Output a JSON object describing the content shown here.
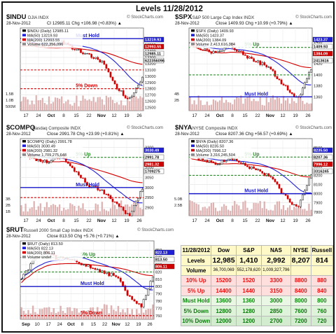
{
  "title": "Levels 11/28/2012",
  "watermark": "© StockCharts.com",
  "colors": {
    "up": "#111111",
    "down": "#d10000",
    "ma50": "#1f1fd6",
    "ma200": "#d10000",
    "volume": "#d9a5a5",
    "green_line": "#2a8c2a",
    "blue_line": "#1515c8",
    "red_line": "#d30000"
  },
  "panels": [
    {
      "id": "indu",
      "symbol": "$INDU",
      "name": "DJIA INDX",
      "date": "28-Nov-2012",
      "stats": "Cl 12985.11  Chg +106.98 (+0.83%) ▲",
      "legend": [
        {
          "text": "$INDU (Daily) 12985.11",
          "color": "#111111"
        },
        {
          "text": "MA(50) 13219.93",
          "color": "#1f1fd6"
        },
        {
          "text": "MA(200) 12993.55",
          "color": "#d10000"
        },
        {
          "text": "Volume 622,356,096",
          "color": "#888888"
        }
      ],
      "y_ticks": [
        "13600",
        "13500",
        "13400",
        "13300",
        "13200",
        "13100",
        "13000",
        "12900",
        "12800",
        "12700",
        "12600",
        "12500"
      ],
      "y_range": [
        12450,
        13680
      ],
      "vol_ticks": [
        "1.5B",
        "1.0B",
        "500M"
      ],
      "price_labels": [
        {
          "text": "13219.93",
          "bg": "#1f1fd6"
        },
        {
          "text": "12993.55",
          "bg": "#d10000"
        },
        {
          "text": "12985.11",
          "bg": "#ffffff"
        },
        {
          "text": "622356096",
          "bg": "#ffffff"
        }
      ],
      "x_labels": [
        "17",
        "24",
        "Oct",
        "8",
        "15",
        "22",
        "Nov",
        "12",
        "19",
        "26"
      ],
      "levels": [
        {
          "label": "Must Hold",
          "value": 13600,
          "color": "#1515c8",
          "style": "solid"
        },
        {
          "label": "",
          "value": 13100,
          "color": "#d30000",
          "style": "dashed"
        },
        {
          "label": "5% Down",
          "value": 12800,
          "color": "#d30000",
          "style": "dashed"
        }
      ]
    },
    {
      "id": "spx",
      "symbol": "$SPX",
      "name": "S&P 500 Large Cap Index INDX",
      "date": "28-Nov-2012",
      "stats": "Close 1409.93  Chg +10.99 (+0.79%) ▲",
      "legend": [
        {
          "text": "$SPX (Daily) 1409.93",
          "color": "#111111"
        },
        {
          "text": "MA(50) 1423.37",
          "color": "#1f1fd6"
        },
        {
          "text": "MA(200) 1384.09",
          "color": "#d10000"
        },
        {
          "text": "Volume 2,413,616,384",
          "color": "#888888"
        }
      ],
      "y_ticks": [
        "1460",
        "1440",
        "1420",
        "1400",
        "1380",
        "1360"
      ],
      "y_range": [
        1335,
        1475
      ],
      "vol_ticks": [
        "4B",
        "2B"
      ],
      "price_labels": [
        {
          "text": "1423.37",
          "bg": "#1f1fd6"
        },
        {
          "text": "1409.93",
          "bg": "#ffffff"
        },
        {
          "text": "1384.09",
          "bg": "#d10000"
        },
        {
          "text": "2413616",
          "bg": "#ffffff"
        }
      ],
      "x_labels": [
        "17",
        "24",
        "Oct",
        "8",
        "15",
        "22",
        "Nov",
        "12",
        "19",
        "26"
      ],
      "levels": [
        {
          "label": "5% Up",
          "value": 1450,
          "color": "#2a8c2a",
          "style": "dashed"
        },
        {
          "label": "",
          "value": 1400,
          "color": "#2a8c2a",
          "style": "dashed"
        },
        {
          "label": "Must Hold",
          "value": 1360,
          "color": "#1515c8",
          "style": "solid"
        }
      ]
    },
    {
      "id": "compq",
      "symbol": "$COMPQ",
      "name": "Nasdaq Composite INDX",
      "date": "28-Nov-2012",
      "stats": "Close 2991.78  Chg +23.99 (+0.81%) ▲",
      "legend": [
        {
          "text": "$COMPQ (Daily) 2991.78",
          "color": "#111111"
        },
        {
          "text": "MA(50) 3030.49",
          "color": "#1f1fd6"
        },
        {
          "text": "MA(200) 2981.32",
          "color": "#d10000"
        },
        {
          "text": "Volume 1,709,275,648",
          "color": "#888888"
        }
      ],
      "y_ticks": [
        "3200",
        "3150",
        "3100",
        "3050",
        "3000",
        "2950",
        "2900"
      ],
      "y_range": [
        2860,
        3215
      ],
      "vol_ticks": [
        "3B",
        "2B",
        "1B"
      ],
      "price_labels": [
        {
          "text": "3030.49",
          "bg": "#1f1fd6"
        },
        {
          "text": "2991.78",
          "bg": "#ffffff"
        },
        {
          "text": "2981.32",
          "bg": "#d10000"
        },
        {
          "text": "1709275",
          "bg": "#ffffff"
        }
      ],
      "x_labels": [
        "17",
        "24",
        "Oct",
        "8",
        "15",
        "22",
        "Nov",
        "12",
        "19",
        "26"
      ],
      "levels": [
        {
          "label": "5% Up",
          "value": 3150,
          "color": "#2a8c2a",
          "style": "dashed"
        },
        {
          "label": "Must Hold",
          "value": 3000,
          "color": "#1515c8",
          "style": "solid"
        },
        {
          "label": "",
          "value": 2950,
          "color": "#d30000",
          "style": "dashed"
        },
        {
          "label": "5% Down",
          "value": 2850,
          "color": "#d30000",
          "style": "dashed"
        }
      ]
    },
    {
      "id": "nya",
      "symbol": "$NYA",
      "name": "NYSE Composite INDX",
      "date": "28-Nov-2012",
      "stats": "Close 8207.36  Chg +56.57 (+0.69%) ▲",
      "legend": [
        {
          "text": "$NYA (Daily) 8207.36",
          "color": "#111111"
        },
        {
          "text": "MA(50) 8235.50",
          "color": "#1f1fd6"
        },
        {
          "text": "MA(200) 7996.12",
          "color": "#d10000"
        },
        {
          "text": "Volume 3,316,245,504",
          "color": "#888888"
        }
      ],
      "y_ticks": [
        "8500",
        "8400",
        "8300",
        "8200",
        "8100",
        "8000",
        "7900",
        "7800"
      ],
      "y_range": [
        7760,
        8540
      ],
      "vol_ticks": [
        "5.0B",
        "2.5B"
      ],
      "price_labels": [
        {
          "text": "8235.50",
          "bg": "#1f1fd6"
        },
        {
          "text": "8207.36",
          "bg": "#ffffff"
        },
        {
          "text": "7996.12",
          "bg": "#d10000"
        },
        {
          "text": "3316245",
          "bg": "#ffffff"
        }
      ],
      "x_labels": [
        "17",
        "24",
        "Oct",
        "8",
        "15",
        "22",
        "Nov",
        "12",
        "19",
        "26"
      ],
      "levels": [
        {
          "label": "5% Up",
          "value": 8400,
          "color": "#2a8c2a",
          "style": "dashed"
        },
        {
          "label": "",
          "value": 8200,
          "color": "#2a8c2a",
          "style": "dashed"
        },
        {
          "label": "Must Hold",
          "value": 8000,
          "color": "#1515c8",
          "style": "solid"
        }
      ]
    },
    {
      "id": "rut",
      "symbol": "$RUT",
      "name": "Russell 2000 Small Cap Index INDX",
      "date": "28-Nov-2012",
      "stats": "Close 813.50  Chg +5.76 (+0.71%) ▲",
      "legend": [
        {
          "text": "$RUT (Daily) 813.50",
          "color": "#111111"
        },
        {
          "text": "MA(50) 822.13",
          "color": "#1f1fd6"
        },
        {
          "text": "MA(200) 806.11",
          "color": "#d10000"
        },
        {
          "text": "Volume undef",
          "color": "#888888"
        }
      ],
      "y_ticks": [
        "850",
        "840",
        "830",
        "820",
        "810",
        "800",
        "790",
        "780",
        "770",
        "760"
      ],
      "y_range": [
        755,
        855
      ],
      "vol_ticks": [],
      "price_labels": [
        {
          "text": "822.13",
          "bg": "#1f1fd6"
        },
        {
          "text": "813.50",
          "bg": "#ffffff"
        },
        {
          "text": "806.11",
          "bg": "#d10000"
        }
      ],
      "x_labels": [
        "Sep",
        "10",
        "17",
        "24",
        "Oct",
        "8",
        "15",
        "22",
        "Nov",
        "12",
        "19",
        "26"
      ],
      "levels": [
        {
          "label": "5% Up",
          "value": 840,
          "color": "#2a8c2a",
          "style": "dashed"
        },
        {
          "label": "",
          "value": 820,
          "color": "#2a8c2a",
          "style": "dashed"
        },
        {
          "label": "Must Hold",
          "value": 800,
          "color": "#1515c8",
          "style": "solid"
        },
        {
          "label": "5% Down",
          "value": 760,
          "color": "#d30000",
          "style": "dashed"
        }
      ]
    }
  ],
  "summary": {
    "date": "11/28/2012",
    "headers": [
      "Dow",
      "S&P",
      "NAS",
      "NYSE",
      "Russell"
    ],
    "levels_label": "Levels",
    "levels": [
      "12,985",
      "1,410",
      "2,992",
      "8,207",
      "814"
    ],
    "volume_label": "Volume",
    "volume": [
      "36,700,069",
      "552,178,620",
      "1,009,327,796",
      "",
      ""
    ],
    "rows": [
      {
        "label": "10% Up",
        "values": [
          "15200",
          "1520",
          "3300",
          "8800",
          "880"
        ],
        "cls": "b10"
      },
      {
        "label": "5% Up",
        "values": [
          "14400",
          "1440",
          "3150",
          "8400",
          "840"
        ],
        "cls": "b5"
      },
      {
        "label": "Must Hold",
        "values": [
          "13600",
          "1360",
          "3000",
          "8000",
          "800"
        ],
        "cls": "bmh"
      },
      {
        "label": "5% Down",
        "values": [
          "12800",
          "1280",
          "2850",
          "7600",
          "760"
        ],
        "cls": "b5d"
      },
      {
        "label": "10% Down",
        "values": [
          "12000",
          "1200",
          "2700",
          "7200",
          "720"
        ],
        "cls": "b10d"
      }
    ]
  },
  "chart_data": [
    {
      "type": "line",
      "title": "$INDU",
      "x": [
        "17",
        "24",
        "Oct",
        "8",
        "15",
        "22",
        "Nov",
        "12",
        "19",
        "26"
      ],
      "series": [
        {
          "name": "$INDU (Daily) 12985.11",
          "values": [
            13560,
            13510,
            13480,
            13550,
            13420,
            13340,
            13230,
            12830,
            12620,
            12985
          ]
        }
      ],
      "ylim": [
        12450,
        13680
      ]
    },
    {
      "type": "line",
      "title": "$SPX",
      "x": [
        "17",
        "24",
        "Oct",
        "8",
        "15",
        "22",
        "Nov",
        "12",
        "19",
        "26"
      ],
      "series": [
        {
          "name": "$SPX (Daily) 1409.93",
          "values": [
            1460,
            1445,
            1440,
            1455,
            1435,
            1425,
            1410,
            1380,
            1355,
            1409.93
          ]
        }
      ],
      "ylim": [
        1335,
        1475
      ]
    },
    {
      "type": "line",
      "title": "$COMPQ",
      "x": [
        "17",
        "24",
        "Oct",
        "8",
        "15",
        "22",
        "Nov",
        "12",
        "19",
        "26"
      ],
      "series": [
        {
          "name": "$COMPQ (Daily) 2991.78",
          "values": [
            3180,
            3140,
            3130,
            3160,
            3080,
            3010,
            2985,
            2920,
            2860,
            2991.78
          ]
        }
      ],
      "ylim": [
        2860,
        3215
      ]
    },
    {
      "type": "line",
      "title": "$NYA",
      "x": [
        "17",
        "24",
        "Oct",
        "8",
        "15",
        "22",
        "Nov",
        "12",
        "19",
        "26"
      ],
      "series": [
        {
          "name": "$NYA (Daily) 8207.36",
          "values": [
            8430,
            8360,
            8320,
            8400,
            8310,
            8250,
            8180,
            7980,
            7840,
            8207.36
          ]
        }
      ],
      "ylim": [
        7760,
        8540
      ]
    },
    {
      "type": "line",
      "title": "$RUT",
      "x": [
        "Sep",
        "10",
        "17",
        "24",
        "Oct",
        "8",
        "15",
        "22",
        "Nov",
        "12",
        "19",
        "26"
      ],
      "series": [
        {
          "name": "$RUT (Daily) 813.50",
          "values": [
            810,
            835,
            848,
            838,
            840,
            832,
            826,
            818,
            815,
            785,
            772,
            813.5
          ]
        }
      ],
      "ylim": [
        755,
        855
      ]
    }
  ]
}
